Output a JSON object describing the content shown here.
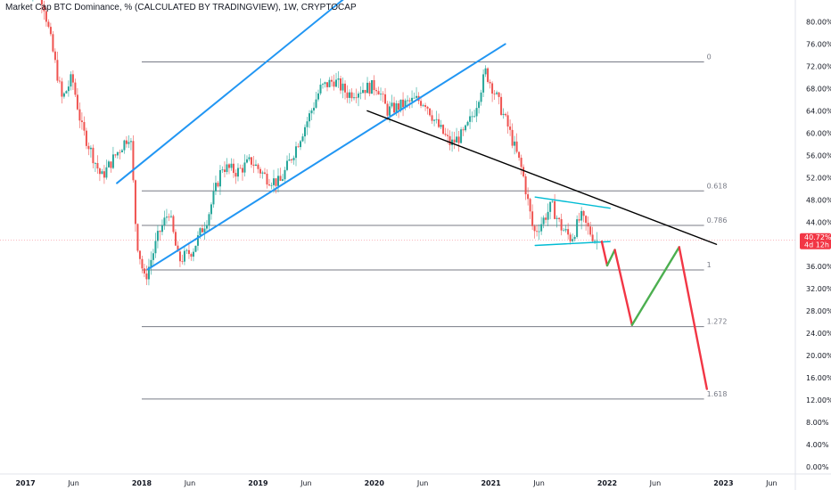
{
  "header": {
    "title": "Market Cap BTC Dominance, % (CALCULATED BY TRADINGVIEW), 1W, CRYPTOCAP"
  },
  "price_marker": {
    "value": "40.72%",
    "countdown": "4d 12h",
    "color": "#f23645"
  },
  "colors": {
    "up": "#26a69a",
    "down": "#ef5350",
    "channel": "#2196f3",
    "trendline": "#000000",
    "triangle": "#00bcd4",
    "fib": "#787b86",
    "proj_down": "#f23645",
    "proj_up": "#4caf50",
    "price_line": "#f23645"
  },
  "chart_data": {
    "type": "candlestick",
    "title": "Market Cap BTC Dominance, % (CALCULATED BY TRADINGVIEW), 1W, CRYPTOCAP",
    "x_range": [
      "2016-09-15",
      "2023-11-01"
    ],
    "y_range": [
      0,
      82
    ],
    "y_ticks": [
      "80.00%",
      "76.00%",
      "72.00%",
      "68.00%",
      "64.00%",
      "60.00%",
      "56.00%",
      "52.00%",
      "48.00%",
      "44.00%",
      "40.00%",
      "36.00%",
      "32.00%",
      "28.00%",
      "24.00%",
      "20.00%",
      "16.00%",
      "12.00%",
      "8.00%",
      "4.00%",
      "0.00%"
    ],
    "x_ticks": [
      {
        "date": "2017-01-01",
        "label": "2017",
        "year": true
      },
      {
        "date": "2017-06-01",
        "label": "Jun",
        "year": false
      },
      {
        "date": "2018-01-01",
        "label": "2018",
        "year": true
      },
      {
        "date": "2018-06-01",
        "label": "Jun",
        "year": false
      },
      {
        "date": "2019-01-01",
        "label": "2019",
        "year": true
      },
      {
        "date": "2019-06-01",
        "label": "Jun",
        "year": false
      },
      {
        "date": "2020-01-01",
        "label": "2020",
        "year": true
      },
      {
        "date": "2020-06-01",
        "label": "Jun",
        "year": false
      },
      {
        "date": "2021-01-01",
        "label": "2021",
        "year": true
      },
      {
        "date": "2021-06-01",
        "label": "Jun",
        "year": false
      },
      {
        "date": "2022-01-01",
        "label": "2022",
        "year": true
      },
      {
        "date": "2022-06-01",
        "label": "Jun",
        "year": false
      },
      {
        "date": "2023-01-01",
        "label": "2023",
        "year": true
      },
      {
        "date": "2023-06-01",
        "label": "Jun",
        "year": false
      }
    ],
    "price_path": [
      [
        "2017-01-01",
        87
      ],
      [
        "2017-03-01",
        84
      ],
      [
        "2017-05-01",
        66
      ],
      [
        "2017-06-01",
        70
      ],
      [
        "2017-07-01",
        61
      ],
      [
        "2017-09-01",
        52
      ],
      [
        "2017-10-15",
        56
      ],
      [
        "2017-12-01",
        60
      ],
      [
        "2017-12-20",
        41
      ],
      [
        "2018-01-15",
        33.5
      ],
      [
        "2018-03-01",
        42
      ],
      [
        "2018-04-01",
        46
      ],
      [
        "2018-05-01",
        37
      ],
      [
        "2018-06-15",
        39
      ],
      [
        "2018-08-01",
        45
      ],
      [
        "2018-09-15",
        54
      ],
      [
        "2018-11-01",
        53
      ],
      [
        "2018-12-15",
        55
      ],
      [
        "2019-02-01",
        52
      ],
      [
        "2019-03-15",
        51
      ],
      [
        "2019-05-01",
        57
      ],
      [
        "2019-06-15",
        63
      ],
      [
        "2019-07-20",
        68
      ],
      [
        "2019-09-01",
        69.5
      ],
      [
        "2019-10-15",
        67
      ],
      [
        "2019-12-01",
        68
      ],
      [
        "2020-01-15",
        68.5
      ],
      [
        "2020-02-15",
        64
      ],
      [
        "2020-04-01",
        65
      ],
      [
        "2020-05-15",
        66
      ],
      [
        "2020-06-15",
        65.5
      ],
      [
        "2020-07-15",
        62
      ],
      [
        "2020-09-01",
        58
      ],
      [
        "2020-10-15",
        60
      ],
      [
        "2020-11-15",
        64
      ],
      [
        "2020-12-20",
        71
      ],
      [
        "2021-01-20",
        67
      ],
      [
        "2021-03-01",
        61
      ],
      [
        "2021-04-15",
        53
      ],
      [
        "2021-05-20",
        42
      ],
      [
        "2021-06-15",
        44
      ],
      [
        "2021-07-15",
        47
      ],
      [
        "2021-08-15",
        43
      ],
      [
        "2021-09-15",
        41
      ],
      [
        "2021-10-15",
        45
      ],
      [
        "2021-11-15",
        42
      ],
      [
        "2021-12-01",
        40.72
      ]
    ],
    "channel_lines": [
      {
        "name": "channel-upper",
        "from": [
          "2017-10-15",
          51
        ],
        "to": [
          "2020-03-15",
          92
        ]
      },
      {
        "name": "channel-lower",
        "from": [
          "2018-01-20",
          35.5
        ],
        "to": [
          "2021-02-15",
          76
        ]
      }
    ],
    "trendline": {
      "from": [
        "2019-12-10",
        64
      ],
      "to": [
        "2022-12-10",
        40
      ]
    },
    "triangle": {
      "upper": {
        "from": [
          "2021-05-20",
          48.5
        ],
        "to": [
          "2022-01-10",
          46.5
        ]
      },
      "lower": {
        "from": [
          "2021-05-20",
          39.8
        ],
        "to": [
          "2022-01-10",
          40.5
        ]
      }
    },
    "fib_levels": [
      {
        "label": "0",
        "value": 72.8
      },
      {
        "label": "0.618",
        "value": 49.6
      },
      {
        "label": "0.786",
        "value": 43.4
      },
      {
        "label": "1",
        "value": 35.4
      },
      {
        "label": "1.272",
        "value": 25.2
      },
      {
        "label": "1.618",
        "value": 12.2
      }
    ],
    "fib_range": [
      "2018-01-01",
      "2022-11-01"
    ],
    "projection": [
      {
        "kind": "down",
        "from": [
          "2021-12-15",
          40.5
        ],
        "to": [
          "2022-01-01",
          36.2
        ]
      },
      {
        "kind": "up",
        "from": [
          "2022-01-01",
          36.2
        ],
        "to": [
          "2022-01-25",
          39
        ]
      },
      {
        "kind": "down",
        "from": [
          "2022-01-25",
          39
        ],
        "to": [
          "2022-03-20",
          25.5
        ]
      },
      {
        "kind": "up",
        "from": [
          "2022-03-20",
          25.5
        ],
        "to": [
          "2022-08-15",
          39.5
        ]
      },
      {
        "kind": "down",
        "from": [
          "2022-08-15",
          39.5
        ],
        "to": [
          "2022-11-10",
          14
        ]
      }
    ]
  }
}
